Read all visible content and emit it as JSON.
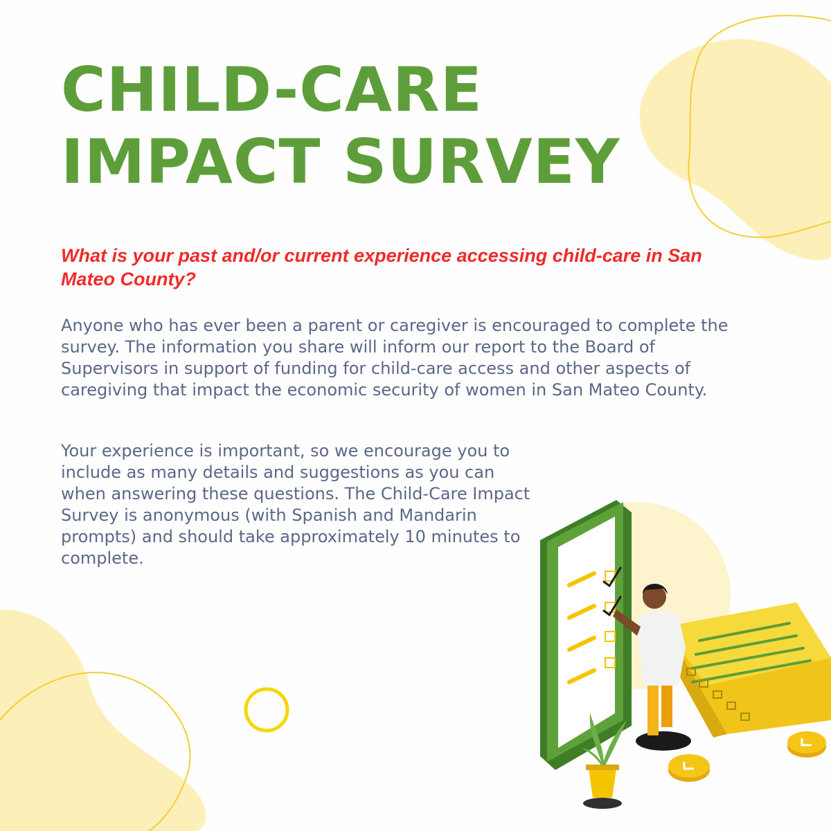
{
  "heading": {
    "line1": "CHILD-CARE",
    "line2": "IMPACT SURVEY"
  },
  "question": "What is your past and/or current experience accessing child-care in San Mateo County?",
  "paragraph1": "Anyone who has ever been a parent or caregiver is encouraged to complete the survey. The information you share will inform our report to the Board of Supervisors in support of funding for child-care access and other aspects of caregiving that impact the economic security of women in San Mateo County.",
  "paragraph2": "Your experience is important, so we encourage you to include as many details and suggestions as you can when answering these questions. The Child-Care Impact Survey is anonymous (with Spanish and Mandarin prompts) and should take approximately 10 minutes to complete.",
  "colors": {
    "title_green": "#5e9e3a",
    "question_red": "#f02a2a",
    "body_text": "#5b6787",
    "blob_yellow": "#fdefb8",
    "accent_yellow": "#f5d60a"
  },
  "illustration": {
    "icon": "survey-checklist-illustration"
  }
}
